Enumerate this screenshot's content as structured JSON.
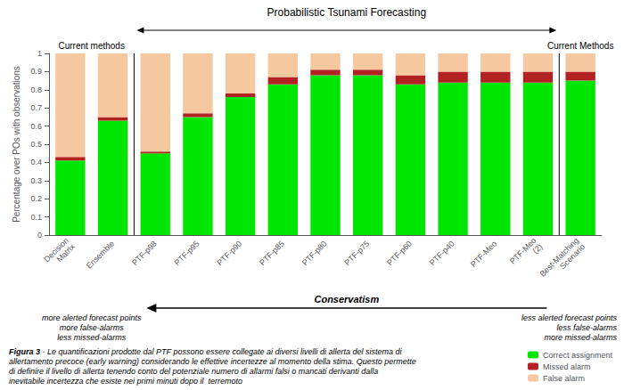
{
  "chart_data": {
    "type": "bar",
    "stacked": true,
    "categories": [
      "Decision\nMatrix",
      "Ensemble",
      "PTF-p98",
      "PTF-p95",
      "PTF-p90",
      "PTF-p85",
      "PTF-p80",
      "PTF-p75",
      "PTF-p60",
      "PTF-p40",
      "PTF-Meo",
      "PTF-Meo\n(2)",
      "Best-Matching\nScenario"
    ],
    "series": [
      {
        "name": "Correct assignment",
        "color": "#00e600",
        "values": [
          0.41,
          0.63,
          0.45,
          0.65,
          0.76,
          0.83,
          0.88,
          0.88,
          0.83,
          0.84,
          0.84,
          0.84,
          0.85
        ]
      },
      {
        "name": "Missed alarm",
        "color": "#b22222",
        "values": [
          0.02,
          0.02,
          0.01,
          0.02,
          0.02,
          0.04,
          0.03,
          0.03,
          0.05,
          0.06,
          0.06,
          0.06,
          0.05
        ]
      },
      {
        "name": "False alarm",
        "color": "#f5c8a0",
        "values": [
          0.57,
          0.35,
          0.54,
          0.33,
          0.22,
          0.13,
          0.09,
          0.09,
          0.12,
          0.1,
          0.1,
          0.1,
          0.1
        ]
      }
    ],
    "ylabel": "Percentage over POs with observations",
    "ylim": [
      0,
      1
    ],
    "yticks": [
      0,
      0.1,
      0.2,
      0.3,
      0.4,
      0.5,
      0.6,
      0.7,
      0.8,
      0.9,
      1
    ],
    "grid": false,
    "legend": "lower right",
    "sections": [
      {
        "header": "Current methods",
        "from": "Decision\nMatrix",
        "to": "Ensemble"
      },
      {
        "header": "Probabilistic Tsunami Forecasting",
        "from": "PTF-p98",
        "to": "PTF-Meo\n(2)"
      },
      {
        "header": "Current Methods",
        "from": "Best-Matching\nScenario",
        "to": "Best-Matching\nScenario"
      }
    ],
    "conservatism": {
      "label": "Conservatism",
      "left": "more alerted forecast points\nmore false-alarms\nless missed-alarms",
      "right": "less alerted forecast points\nless false-alarms\nmore missed-alarms"
    },
    "caption": {
      "bold": "Figura 3",
      "text": " - Le quantificazioni prodotte dal PTF possono essere collegate ai diversi livelli di allerta del sistema di\nallertamento precoce (early warning) considerando le effettive incertezze al momento della stima. Questo permette\ndi definire il livello di allerta tenendo conto del potenziale numero di allarmi falsi o mancati derivanti dalla\ninevitabile incertezza che esiste nei primi minuti dopo il  terremoto"
    }
  }
}
